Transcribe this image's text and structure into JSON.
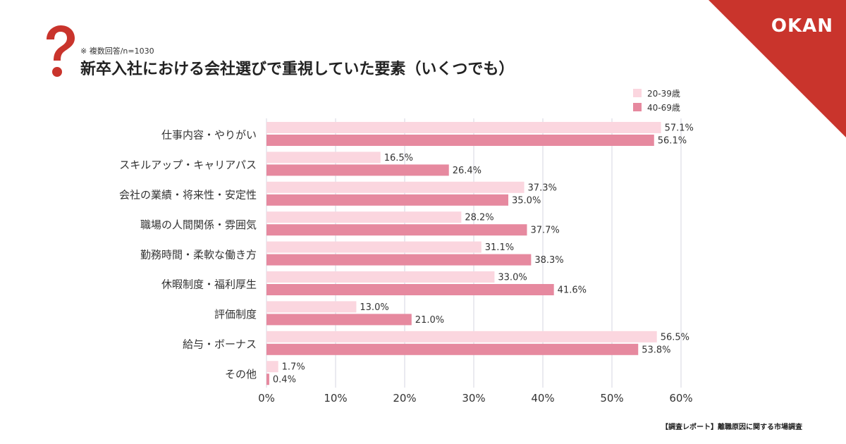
{
  "note": "※ 複数回答/n=1030",
  "title": "新卒入社における会社選びで重視していた要素（いくつでも）",
  "brand": {
    "logo": "OKAN",
    "color": "#c9342c"
  },
  "source": "【調査レポート】離職原因に関する市場調査",
  "colors": {
    "young": "#fbd6df",
    "old": "#e6899f",
    "grid": "#d6d6e0"
  },
  "chart_data": {
    "type": "bar",
    "orientation": "horizontal",
    "title": "新卒入社における会社選びで重視していた要素（いくつでも）",
    "categories": [
      "仕事内容・やりがい",
      "スキルアップ・キャリアパス",
      "会社の業績・将来性・安定性",
      "職場の人間関係・雰囲気",
      "勤務時間・柔軟な働き方",
      "休暇制度・福利厚生",
      "評価制度",
      "給与・ボーナス",
      "その他"
    ],
    "series": [
      {
        "name": "20-39歳",
        "values": [
          57.1,
          16.5,
          37.3,
          28.2,
          31.1,
          33.0,
          13.0,
          56.5,
          1.7
        ]
      },
      {
        "name": "40-69歳",
        "values": [
          56.1,
          26.4,
          35.0,
          37.7,
          38.3,
          41.6,
          21.0,
          53.8,
          0.4
        ]
      }
    ],
    "xlim": [
      0,
      60
    ],
    "xticks": [
      0,
      10,
      20,
      30,
      40,
      50,
      60
    ],
    "tick_labels": [
      "0%",
      "10%",
      "20%",
      "30%",
      "40%",
      "50%",
      "60%"
    ],
    "value_suffix": "%",
    "grid": true,
    "legend": "top-right"
  }
}
